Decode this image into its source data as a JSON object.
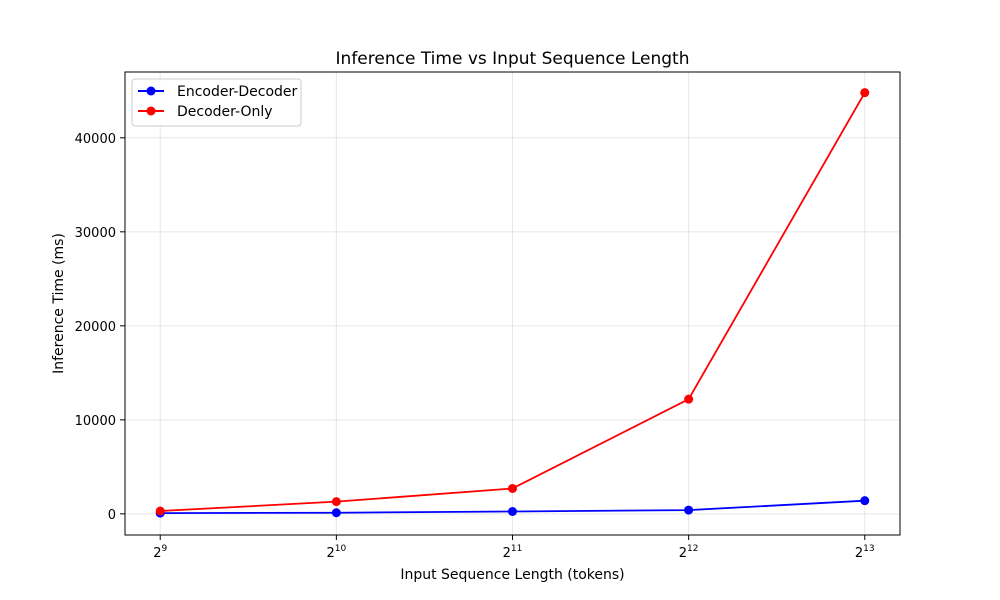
{
  "chart_data": {
    "type": "line",
    "title": "Inference Time vs Input Sequence Length",
    "xlabel": "Input Sequence Length (tokens)",
    "ylabel": "Inference Time (ms)",
    "x_scale": "log2",
    "x": [
      512,
      1024,
      2048,
      4096,
      8192
    ],
    "x_tick_labels": [
      {
        "base": "2",
        "exp": "9"
      },
      {
        "base": "2",
        "exp": "10"
      },
      {
        "base": "2",
        "exp": "11"
      },
      {
        "base": "2",
        "exp": "12"
      },
      {
        "base": "2",
        "exp": "13"
      }
    ],
    "ylim": [
      -2250,
      47000
    ],
    "y_ticks": [
      0,
      10000,
      20000,
      30000,
      40000
    ],
    "y_tick_labels": [
      "0",
      "10000",
      "20000",
      "30000",
      "40000"
    ],
    "grid": true,
    "legend_position": "top-left",
    "series": [
      {
        "name": "Encoder-Decoder",
        "color": "#0000ff",
        "marker": "circle",
        "values": [
          80,
          120,
          250,
          400,
          1400
        ]
      },
      {
        "name": "Decoder-Only",
        "color": "#ff0000",
        "marker": "circle",
        "values": [
          300,
          1300,
          2700,
          12200,
          44800
        ]
      }
    ]
  }
}
